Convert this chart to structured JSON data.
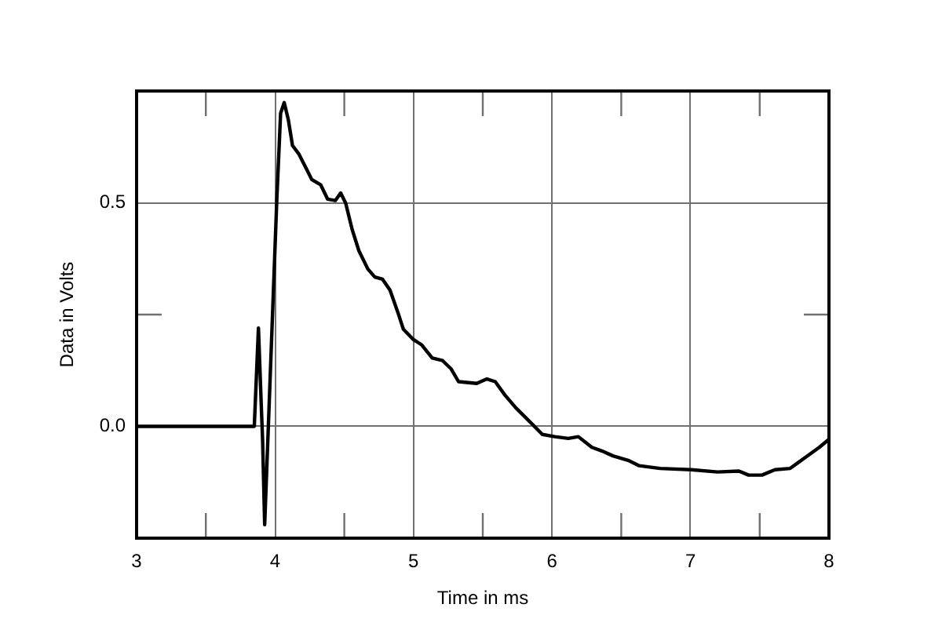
{
  "chart_data": {
    "type": "line",
    "xlabel": "Time in ms",
    "ylabel": "Data in Volts",
    "x": [
      3.0,
      3.85,
      3.88,
      3.9,
      3.91,
      3.925,
      4.013,
      4.04,
      4.066,
      4.095,
      4.126,
      4.17,
      4.228,
      4.265,
      4.33,
      4.38,
      4.435,
      4.474,
      4.51,
      4.557,
      4.605,
      4.67,
      4.72,
      4.776,
      4.83,
      4.89,
      4.927,
      5.0,
      5.06,
      5.135,
      5.21,
      5.27,
      5.325,
      5.456,
      5.53,
      5.59,
      5.66,
      5.74,
      5.834,
      5.93,
      6.02,
      6.118,
      6.19,
      6.288,
      6.36,
      6.44,
      6.55,
      6.63,
      6.78,
      7.005,
      7.195,
      7.35,
      7.42,
      7.516,
      7.61,
      7.72,
      7.84,
      7.93,
      8.0
    ],
    "values": [
      0.0,
      0.0,
      0.22,
      0.05,
      -0.03,
      -0.22,
      0.51,
      0.7,
      0.724,
      0.687,
      0.628,
      0.61,
      0.575,
      0.552,
      0.54,
      0.508,
      0.505,
      0.522,
      0.499,
      0.44,
      0.393,
      0.352,
      0.334,
      0.329,
      0.305,
      0.252,
      0.217,
      0.194,
      0.182,
      0.153,
      0.147,
      0.129,
      0.1,
      0.096,
      0.106,
      0.1,
      0.07,
      0.041,
      0.012,
      -0.018,
      -0.023,
      -0.027,
      -0.023,
      -0.047,
      -0.055,
      -0.066,
      -0.076,
      -0.088,
      -0.094,
      -0.097,
      -0.102,
      -0.1,
      -0.109,
      -0.109,
      -0.097,
      -0.094,
      -0.067,
      -0.047,
      -0.029
    ],
    "color": "#000000",
    "xlim": [
      3,
      8
    ],
    "xticks": [
      3,
      {
        "value": 3.5,
        "label": null
      },
      4,
      {
        "value": 4.5,
        "label": null
      },
      5,
      {
        "value": 5.5,
        "label": null
      },
      6,
      {
        "value": 6.5,
        "label": null
      },
      7,
      {
        "value": 7.5,
        "label": null
      },
      8
    ],
    "ylim": [
      -0.25,
      0.75
    ],
    "yticks": [
      {
        "value": 0,
        "label": "0.0"
      },
      {
        "value": 0.25,
        "label": null
      },
      0.5
    ],
    "grid": true
  }
}
